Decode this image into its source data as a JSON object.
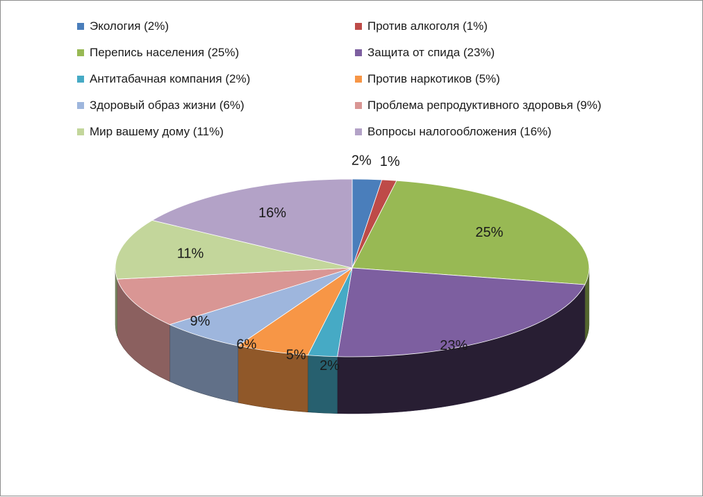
{
  "chart_data": {
    "type": "pie",
    "style": "3d",
    "legend_position": "top",
    "slices": [
      {
        "label": "Экология (2%)",
        "value": 2,
        "value_label": "2%",
        "color": "#4a7ebb"
      },
      {
        "label": "Против алкоголя (1%)",
        "value": 1,
        "value_label": "1%",
        "color": "#be4b48"
      },
      {
        "label": "Перепись населения (25%)",
        "value": 25,
        "value_label": "25%",
        "color": "#98b954"
      },
      {
        "label": "Защита от спида (23%)",
        "value": 23,
        "value_label": "23%",
        "color": "#7d5fa0"
      },
      {
        "label": "Антитабачная компания (2%)",
        "value": 2,
        "value_label": "2%",
        "color": "#46aac5"
      },
      {
        "label": "Против наркотиков (5%)",
        "value": 5,
        "value_label": "5%",
        "color": "#f79646"
      },
      {
        "label": "Здоровый образ жизни (6%)",
        "value": 6,
        "value_label": "6%",
        "color": "#9eb6dd"
      },
      {
        "label": "Проблема репродуктивного здоровья (9%)",
        "value": 9,
        "value_label": "9%",
        "color": "#d99694"
      },
      {
        "label": "Мир вашему дому (11%)",
        "value": 11,
        "value_label": "11%",
        "color": "#c3d69b"
      },
      {
        "label": "Вопросы налогообложения (16%)",
        "value": 16,
        "value_label": "16%",
        "color": "#b3a2c7"
      }
    ]
  }
}
